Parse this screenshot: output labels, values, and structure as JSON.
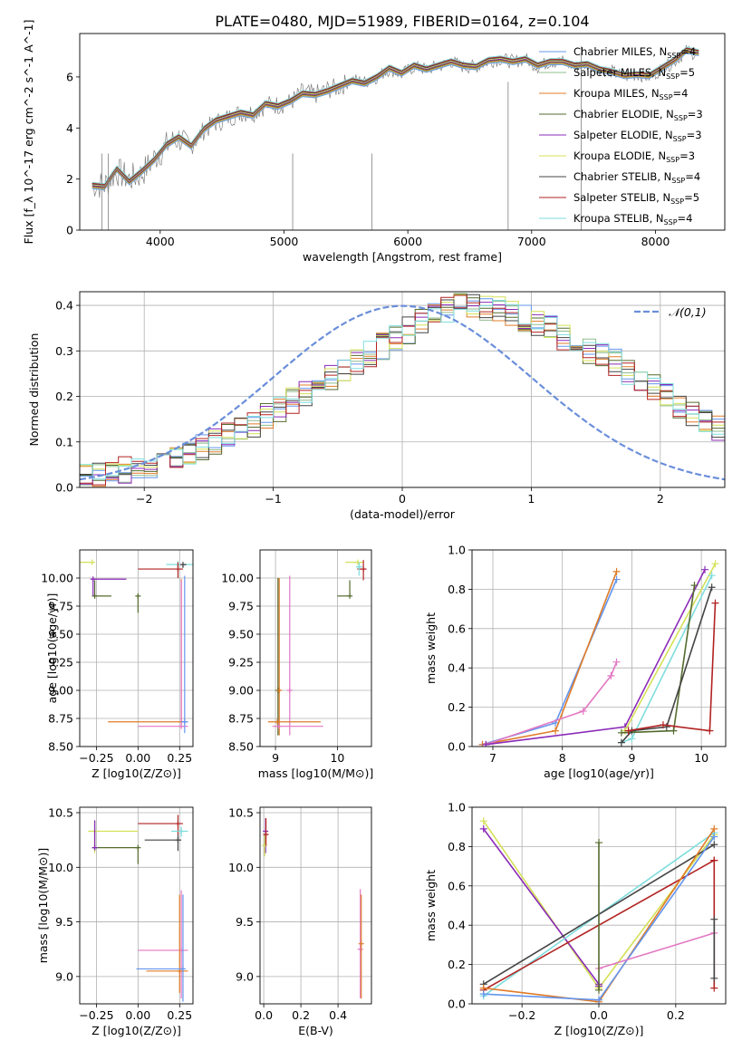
{
  "colors": {
    "cm": "#6495ED",
    "sm": "#8FBC8F",
    "km": "#E07B28",
    "ce": "#556B2F",
    "se": "#8B2BB9",
    "ke": "#D4E157",
    "cs": "#444444",
    "ss": "#B22222",
    "ks": "#7FDDDD",
    "pink": "#E377C2",
    "gauss": "#6A8EDB",
    "grid": "#b0b0b0",
    "spec": "#808080"
  },
  "chart_data": [
    {
      "id": "spectrum",
      "type": "line",
      "title": "PLATE=0480, MJD=51989, FIBERID=0164, z=0.104",
      "xlabel": "wavelength [Angstrom, rest frame]",
      "ylabel": "Flux [f_λ 10^-17 erg cm^-2 s^-1 A^-1]",
      "xlim": [
        3350,
        8560
      ],
      "ylim": [
        0,
        7.7
      ],
      "xticks": [
        4000,
        5000,
        6000,
        7000,
        8000
      ],
      "yticks": [
        0,
        2,
        4,
        6
      ],
      "grid": false,
      "legend_position": "top-right",
      "legend": [
        "Chabrier MILES, N_SSP=4",
        "Salpeter MILES, N_SSP=5",
        "Kroupa MILES, N_SSP=4",
        "Chabrier ELODIE, N_SSP=3",
        "Salpeter ELODIE, N_SSP=3",
        "Kroupa ELODIE, N_SSP=3",
        "Chabrier STELIB, N_SSP=4",
        "Salpeter STELIB, N_SSP=5",
        "Kroupa STELIB, N_SSP=4"
      ],
      "legend_colors": [
        "cm",
        "sm",
        "km",
        "ce",
        "se",
        "ke",
        "cs",
        "ss",
        "ks"
      ],
      "data_x": [
        3450,
        3550,
        3650,
        3750,
        3850,
        3950,
        4050,
        4150,
        4250,
        4350,
        4450,
        4550,
        4650,
        4750,
        4850,
        4950,
        5050,
        5150,
        5250,
        5350,
        5450,
        5550,
        5650,
        5750,
        5850,
        5950,
        6050,
        6150,
        6250,
        6350,
        6450,
        6550,
        6650,
        6750,
        6850,
        6950,
        7050,
        7150,
        7250,
        7350,
        7450,
        7550,
        7650,
        7750,
        7850,
        7950,
        8050,
        8150,
        8250,
        8350
      ],
      "data_y": [
        1.8,
        1.75,
        2.3,
        2.0,
        2.2,
        2.8,
        3.3,
        3.6,
        3.3,
        3.9,
        4.2,
        4.4,
        4.6,
        4.6,
        4.9,
        4.9,
        5.0,
        5.4,
        5.3,
        5.5,
        5.6,
        5.9,
        5.8,
        6.0,
        6.3,
        6.1,
        6.4,
        6.3,
        6.4,
        6.6,
        6.4,
        6.4,
        6.6,
        6.7,
        6.6,
        6.7,
        6.4,
        6.6,
        6.6,
        6.4,
        6.5,
        6.3,
        6.2,
        6.0,
        6.1,
        6.0,
        6.3,
        6.6,
        7.0,
        6.9
      ],
      "model_x": [
        3450,
        3550,
        3650,
        3750,
        3850,
        3950,
        4050,
        4150,
        4250,
        4350,
        4450,
        4550,
        4650,
        4750,
        4850,
        4950,
        5050,
        5150,
        5250,
        5350,
        5450,
        5550,
        5650,
        5750,
        5850,
        5950,
        6050,
        6150,
        6250,
        6350,
        6450,
        6550,
        6650,
        6750,
        6850,
        6950,
        7050,
        7150,
        7250,
        7350,
        7450,
        7550,
        7650,
        7750,
        7850,
        7950,
        8050,
        8150,
        8250,
        8350
      ],
      "model_y": [
        1.75,
        1.7,
        2.4,
        1.9,
        2.3,
        2.75,
        3.35,
        3.65,
        3.3,
        3.95,
        4.3,
        4.45,
        4.6,
        4.5,
        4.95,
        4.85,
        5.05,
        5.35,
        5.3,
        5.45,
        5.65,
        5.85,
        5.75,
        6.0,
        6.35,
        6.15,
        6.45,
        6.3,
        6.45,
        6.6,
        6.45,
        6.4,
        6.65,
        6.7,
        6.6,
        6.7,
        6.45,
        6.6,
        6.6,
        6.45,
        6.5,
        6.3,
        6.2,
        6.05,
        6.1,
        6.05,
        6.35,
        6.65,
        7.05,
        6.95
      ]
    },
    {
      "id": "residuals",
      "type": "histogram",
      "xlabel": "(data-model)/error",
      "ylabel": "Normed distribution",
      "xlim": [
        -2.5,
        2.5
      ],
      "ylim": [
        0,
        0.43
      ],
      "xticks": [
        -2,
        -1,
        0,
        1,
        2
      ],
      "yticks": [
        0.0,
        0.1,
        0.2,
        0.3,
        0.4
      ],
      "grid": true,
      "legend": [
        "𝒩(0,1)"
      ],
      "legend_position": "top-right",
      "bin_width": 0.1,
      "bin_start": -2.5,
      "base_values": [
        0.028,
        0.03,
        0.032,
        0.038,
        0.042,
        0.05,
        0.058,
        0.064,
        0.075,
        0.087,
        0.1,
        0.112,
        0.125,
        0.14,
        0.155,
        0.17,
        0.19,
        0.205,
        0.22,
        0.24,
        0.26,
        0.275,
        0.295,
        0.31,
        0.33,
        0.345,
        0.365,
        0.375,
        0.39,
        0.398,
        0.4,
        0.395,
        0.39,
        0.38,
        0.372,
        0.36,
        0.35,
        0.33,
        0.32,
        0.3,
        0.29,
        0.275,
        0.255,
        0.24,
        0.22,
        0.2,
        0.18,
        0.165,
        0.15,
        0.13
      ]
    },
    {
      "id": "age-vs-Z",
      "type": "errorbar",
      "xlabel": "Z [log10(Z/Z⊙)]",
      "ylabel": "age [log10(age/yr)]",
      "xlim": [
        -0.35,
        0.33
      ],
      "ylim": [
        8.5,
        10.25
      ],
      "xticks": [
        -0.25,
        0.0,
        0.25
      ],
      "yticks": [
        8.5,
        8.75,
        9.0,
        9.25,
        9.5,
        9.75,
        10.0
      ],
      "points": [
        {
          "x": -0.275,
          "y": 10.14,
          "xerr": [
            0.29,
            0.0
          ],
          "yerr": [
            0.0,
            0.0
          ],
          "color": "ke"
        },
        {
          "x": -0.27,
          "y": 9.99,
          "xerr": [
            0.005,
            0.2
          ],
          "yerr": [
            0.15,
            0.0
          ],
          "color": "se"
        },
        {
          "x": -0.26,
          "y": 9.84,
          "xerr": [
            0.005,
            0.1
          ],
          "yerr": [
            0.0,
            0.14
          ],
          "color": "ce"
        },
        {
          "x": 0.0,
          "y": 9.84,
          "xerr": [
            0.0,
            0.0
          ],
          "yerr": [
            0.15,
            0.0
          ],
          "color": "ce"
        },
        {
          "x": 0.24,
          "y": 10.12,
          "xerr": [
            0.07,
            0.1
          ],
          "yerr": [
            0.05,
            0.03
          ],
          "color": "ks"
        },
        {
          "x": 0.24,
          "y": 10.08,
          "xerr": [
            0.24,
            0.03
          ],
          "yerr": [
            0.08,
            0.06
          ],
          "color": "ss"
        },
        {
          "x": 0.27,
          "y": 10.12,
          "xerr": [
            0.0,
            0.02
          ],
          "yerr": [
            0.03,
            0.0
          ],
          "color": "cs"
        },
        {
          "x": 0.26,
          "y": 8.72,
          "xerr": [
            0.44,
            0.04
          ],
          "yerr": [
            0.0,
            1.27
          ],
          "color": "km"
        },
        {
          "x": 0.26,
          "y": 8.68,
          "xerr": [
            0.26,
            0.04
          ],
          "yerr": [
            0.0,
            1.3
          ],
          "color": "pink"
        },
        {
          "x": 0.28,
          "y": 8.72,
          "xerr": [
            0.02,
            0.02
          ],
          "yerr": [
            0.1,
            1.3
          ],
          "color": "cm"
        }
      ]
    },
    {
      "id": "age-vs-mass",
      "type": "errorbar",
      "xlabel": "mass [log10(M/M⊙)]",
      "ylabel": "",
      "xlim": [
        8.75,
        10.55
      ],
      "ylim": [
        8.5,
        10.25
      ],
      "xticks": [
        9,
        10
      ],
      "yticks": [
        8.5,
        8.75,
        9.0,
        9.25,
        9.5,
        9.75,
        10.0
      ],
      "points": [
        {
          "x": 9.04,
          "y": 9.0,
          "xerr": [
            0.0,
            0.0
          ],
          "yerr": [
            0.4,
            1.0
          ],
          "color": "ce"
        },
        {
          "x": 9.06,
          "y": 9.0,
          "xerr": [
            0.0,
            0.0
          ],
          "yerr": [
            0.4,
            1.0
          ],
          "color": "km"
        },
        {
          "x": 9.23,
          "y": 9.0,
          "xerr": [
            0.0,
            0.0
          ],
          "yerr": [
            0.4,
            1.02
          ],
          "color": "pink"
        },
        {
          "x": 9.03,
          "y": 8.72,
          "xerr": [
            0.15,
            0.7
          ],
          "yerr": [
            0.0,
            0.0
          ],
          "color": "km"
        },
        {
          "x": 9.05,
          "y": 8.68,
          "xerr": [
            0.1,
            0.72
          ],
          "yerr": [
            0.0,
            0.0
          ],
          "color": "pink"
        },
        {
          "x": 10.33,
          "y": 10.14,
          "xerr": [
            0.2,
            0.08
          ],
          "yerr": [
            0.0,
            0.0
          ],
          "color": "ke"
        },
        {
          "x": 10.2,
          "y": 9.84,
          "xerr": [
            0.2,
            0.0
          ],
          "yerr": [
            0.0,
            0.14
          ],
          "color": "ce"
        },
        {
          "x": 10.42,
          "y": 10.08,
          "xerr": [
            0.1,
            0.05
          ],
          "yerr": [
            0.1,
            0.08
          ],
          "color": "ss"
        },
        {
          "x": 10.35,
          "y": 10.1,
          "xerr": [
            0.05,
            0.05
          ],
          "yerr": [
            0.08,
            0.04
          ],
          "color": "ks"
        }
      ]
    },
    {
      "id": "weight-vs-age",
      "type": "line",
      "xlabel": "age [log10(age/yr)]",
      "ylabel": "mass weight",
      "xlim": [
        6.7,
        10.35
      ],
      "ylim": [
        0,
        1.0
      ],
      "xticks": [
        7,
        8,
        9,
        10
      ],
      "yticks": [
        0.0,
        0.2,
        0.4,
        0.6,
        0.8,
        1.0
      ],
      "series": [
        {
          "color": "cm",
          "x": [
            6.85,
            7.9,
            8.78
          ],
          "y": [
            0.01,
            0.12,
            0.85
          ]
        },
        {
          "color": "km",
          "x": [
            6.85,
            7.9,
            8.78
          ],
          "y": [
            0.01,
            0.08,
            0.89
          ]
        },
        {
          "color": "pink",
          "x": [
            6.9,
            8.3,
            8.7,
            8.78
          ],
          "y": [
            0.01,
            0.18,
            0.36,
            0.43
          ]
        },
        {
          "color": "se",
          "x": [
            6.9,
            8.9,
            10.05
          ],
          "y": [
            0.01,
            0.1,
            0.9
          ]
        },
        {
          "color": "ke",
          "x": [
            8.9,
            10.2
          ],
          "y": [
            0.08,
            0.93
          ]
        },
        {
          "color": "ks",
          "x": [
            8.85,
            9.0,
            10.15
          ],
          "y": [
            0.02,
            0.04,
            0.87
          ]
        },
        {
          "color": "ce",
          "x": [
            8.85,
            9.6,
            9.9
          ],
          "y": [
            0.07,
            0.08,
            0.82
          ]
        },
        {
          "color": "cs",
          "x": [
            8.85,
            9.0,
            9.5,
            10.15
          ],
          "y": [
            0.02,
            0.08,
            0.1,
            0.81
          ]
        },
        {
          "color": "ss",
          "x": [
            8.95,
            9.45,
            10.12,
            10.2
          ],
          "y": [
            0.08,
            0.11,
            0.08,
            0.73
          ]
        }
      ]
    },
    {
      "id": "mass-vs-Z",
      "type": "errorbar",
      "xlabel": "Z [log10(Z/Z⊙)]",
      "ylabel": "mass [log10(M/M⊙)]",
      "xlim": [
        -0.35,
        0.33
      ],
      "ylim": [
        8.75,
        10.55
      ],
      "xticks": [
        -0.25,
        0.0,
        0.25
      ],
      "yticks": [
        9.0,
        9.5,
        10.0,
        10.5
      ],
      "points": [
        {
          "x": -0.26,
          "y": 10.33,
          "xerr": [
            0.04,
            0.26
          ],
          "yerr": [
            0.2,
            0.0
          ],
          "color": "ke"
        },
        {
          "x": -0.26,
          "y": 10.18,
          "xerr": [
            0.0,
            0.26
          ],
          "yerr": [
            0.0,
            0.25
          ],
          "color": "ce"
        },
        {
          "x": -0.26,
          "y": 10.18,
          "xerr": [
            0.0,
            0.0
          ],
          "yerr": [
            0.0,
            0.25
          ],
          "color": "se"
        },
        {
          "x": 0.0,
          "y": 10.18,
          "xerr": [
            0.0,
            0.0
          ],
          "yerr": [
            0.15,
            0.0
          ],
          "color": "ce"
        },
        {
          "x": 0.24,
          "y": 10.4,
          "xerr": [
            0.24,
            0.03
          ],
          "yerr": [
            0.1,
            0.08
          ],
          "color": "ss"
        },
        {
          "x": 0.26,
          "y": 10.33,
          "xerr": [
            0.06,
            0.04
          ],
          "yerr": [
            0.05,
            0.04
          ],
          "color": "ks"
        },
        {
          "x": 0.24,
          "y": 10.25,
          "xerr": [
            0.2,
            0.02
          ],
          "yerr": [
            0.1,
            0.05
          ],
          "color": "cs"
        },
        {
          "x": 0.26,
          "y": 9.24,
          "xerr": [
            0.26,
            0.04
          ],
          "yerr": [
            0.44,
            0.55
          ],
          "color": "pink"
        },
        {
          "x": 0.25,
          "y": 9.05,
          "xerr": [
            0.2,
            0.05
          ],
          "yerr": [
            0.2,
            0.7
          ],
          "color": "km"
        },
        {
          "x": 0.27,
          "y": 9.07,
          "xerr": [
            0.28,
            0.0
          ],
          "yerr": [
            0.3,
            0.68
          ],
          "color": "cm"
        }
      ]
    },
    {
      "id": "mass-vs-EBV",
      "type": "errorbar",
      "xlabel": "E(B-V)",
      "ylabel": "",
      "xlim": [
        -0.02,
        0.58
      ],
      "ylim": [
        8.75,
        10.55
      ],
      "xticks": [
        0.0,
        0.2,
        0.4
      ],
      "yticks": [
        9.0,
        9.5,
        10.0,
        10.5
      ],
      "points": [
        {
          "x": 0.01,
          "y": 10.33,
          "xerr": [
            0.0,
            0.0
          ],
          "yerr": [
            0.2,
            0.12
          ],
          "color": "se"
        },
        {
          "x": 0.005,
          "y": 10.2,
          "xerr": [
            0.0,
            0.0
          ],
          "yerr": [
            0.1,
            0.1
          ],
          "color": "ke"
        },
        {
          "x": 0.012,
          "y": 10.3,
          "xerr": [
            0.0,
            0.0
          ],
          "yerr": [
            0.1,
            0.15
          ],
          "color": "ss"
        },
        {
          "x": 0.52,
          "y": 9.25,
          "xerr": [
            0.0,
            0.0
          ],
          "yerr": [
            0.45,
            0.55
          ],
          "color": "pink"
        },
        {
          "x": 0.525,
          "y": 9.3,
          "xerr": [
            0.0,
            0.0
          ],
          "yerr": [
            0.5,
            0.45
          ],
          "color": "km"
        }
      ]
    },
    {
      "id": "weight-vs-Z",
      "type": "line",
      "xlabel": "Z [log10(Z/Z⊙)]",
      "ylabel": "mass weight",
      "xlim": [
        -0.33,
        0.33
      ],
      "ylim": [
        0,
        1.0
      ],
      "xticks": [
        -0.2,
        0.0,
        0.2
      ],
      "yticks": [
        0.0,
        0.2,
        0.4,
        0.6,
        0.8,
        1.0
      ],
      "series": [
        {
          "color": "ke",
          "x": [
            -0.3,
            0.0,
            0.3
          ],
          "y": [
            0.93,
            0.08,
            0.86
          ]
        },
        {
          "color": "se",
          "x": [
            -0.3,
            0.0,
            0.0
          ],
          "y": [
            0.89,
            0.1,
            0.09
          ]
        },
        {
          "color": "ks",
          "x": [
            -0.3,
            0.3
          ],
          "y": [
            0.04,
            0.87
          ]
        },
        {
          "color": "cs",
          "x": [
            -0.3,
            0.3
          ],
          "y": [
            0.1,
            0.81
          ]
        },
        {
          "color": "ss",
          "x": [
            -0.3,
            0.3
          ],
          "y": [
            0.07,
            0.73
          ]
        },
        {
          "color": "km",
          "x": [
            -0.3,
            0.0,
            0.3
          ],
          "y": [
            0.08,
            0.01,
            0.89
          ]
        },
        {
          "color": "cm",
          "x": [
            -0.3,
            0.0,
            0.3
          ],
          "y": [
            0.05,
            0.02,
            0.85
          ]
        },
        {
          "color": "pink",
          "x": [
            0.0,
            0.3
          ],
          "y": [
            0.18,
            0.36
          ]
        },
        {
          "color": "ce",
          "x": [
            0.0,
            0.0
          ],
          "y": [
            0.07,
            0.82
          ]
        },
        {
          "color": "ss",
          "x": [
            0.3,
            0.3
          ],
          "y": [
            0.08,
            0.73
          ]
        },
        {
          "color": "cs",
          "x": [
            0.3,
            0.3
          ],
          "y": [
            0.13,
            0.43
          ]
        }
      ]
    }
  ]
}
